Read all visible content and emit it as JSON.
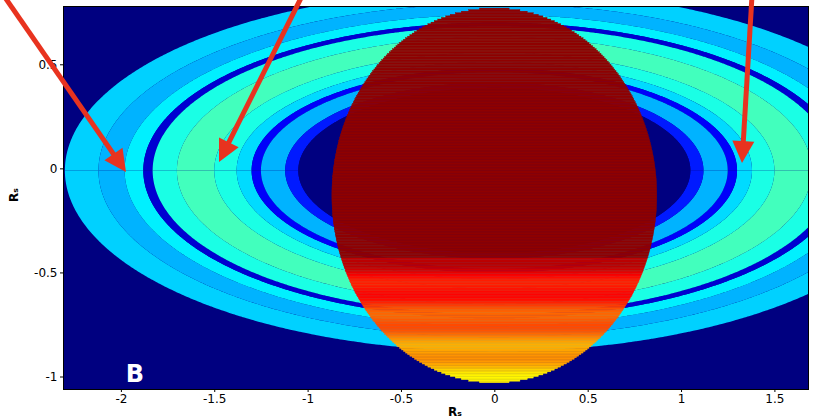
{
  "chart_data": {
    "type": "heatmap",
    "panel_label": "B",
    "x_label": "Rₛ",
    "y_label": "Rₛ",
    "xlim": [
      -2.31,
      1.68
    ],
    "ylim": [
      -1.06,
      0.78
    ],
    "xticks": [
      -2,
      -1.5,
      -1,
      -0.5,
      0,
      0.5,
      1,
      1.5
    ],
    "yticks": [
      -1,
      -0.5,
      0,
      0.5
    ],
    "rings": {
      "center": [
        0,
        -0.01
      ],
      "axis_ratio": 0.378,
      "bands": [
        {
          "r_inner": 2.12,
          "r_outer": 2.3,
          "value": 0.33
        },
        {
          "r_inner": 1.98,
          "r_outer": 2.12,
          "value": 0.3
        },
        {
          "r_inner": 1.88,
          "r_outer": 1.98,
          "value": 0.36
        },
        {
          "r_inner": 1.83,
          "r_outer": 1.88,
          "value": 0.08
        },
        {
          "r_inner": 1.7,
          "r_outer": 1.83,
          "value": 0.4
        },
        {
          "r_inner": 1.5,
          "r_outer": 1.7,
          "value": 0.44
        },
        {
          "r_inner": 1.38,
          "r_outer": 1.5,
          "value": 0.4
        },
        {
          "r_inner": 1.3,
          "r_outer": 1.38,
          "value": 0.34
        },
        {
          "r_inner": 1.25,
          "r_outer": 1.3,
          "value": 0.12
        },
        {
          "r_inner": 1.12,
          "r_outer": 1.25,
          "value": 0.3
        },
        {
          "r_inner": 1.05,
          "r_outer": 1.12,
          "value": 0.15
        },
        {
          "r_inner": 0,
          "r_outer": 1.05,
          "value": 0
        }
      ]
    },
    "planet": {
      "center": [
        0,
        -0.13
      ],
      "rx": 0.87,
      "ry": 0.9
    }
  }
}
